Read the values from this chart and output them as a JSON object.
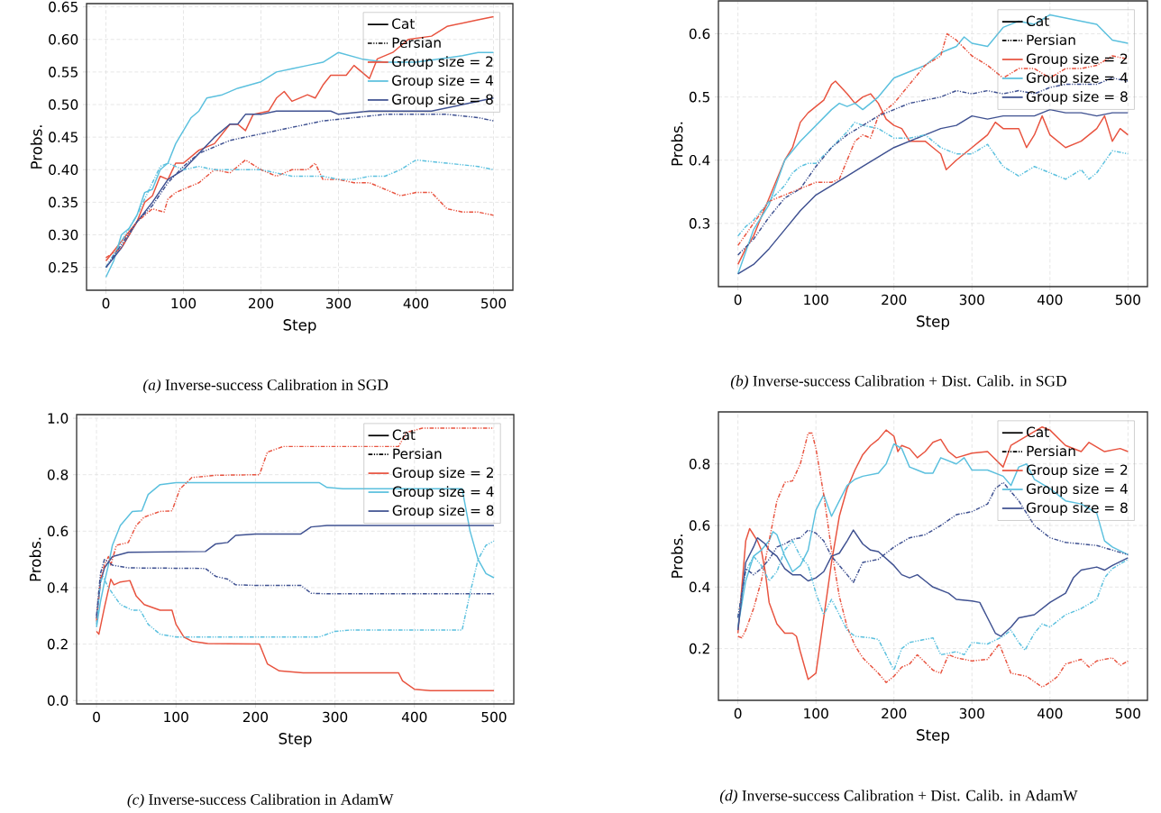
{
  "chart_data": [
    {
      "type": "line",
      "title": "*(a)* Inverse-success Calibration in SGD",
      "xlabel": "Step",
      "ylabel": "Probs.",
      "xlim": [
        -25,
        525
      ],
      "ylim": [
        0.215,
        0.655
      ],
      "xticks": [
        0,
        100,
        200,
        300,
        400,
        500
      ],
      "yticks": [
        0.25,
        {
          "value": 0.3,
          "label": "0.30"
        },
        0.35,
        {
          "value": 0.4,
          "label": "0.40"
        },
        0.45,
        {
          "value": 0.5,
          "label": "0.50"
        },
        0.55,
        {
          "value": 0.6,
          "label": "0.60"
        },
        0.65
      ],
      "grid": true,
      "legend": "top right",
      "series": [
        {
          "name": "Cat",
          "color": "#000000",
          "line_style": "solid"
        },
        {
          "name": "Persian",
          "color": "#000000",
          "line_style": "dashdotdotted"
        },
        {
          "name": "Group size = 2",
          "color": "#e8533f",
          "line_style": "solid",
          "x": [
            0,
            20,
            40,
            50,
            60,
            70,
            80,
            90,
            100,
            120,
            140,
            160,
            170,
            180,
            190,
            210,
            220,
            230,
            240,
            260,
            270,
            280,
            290,
            310,
            320,
            340,
            350,
            370,
            390,
            420,
            440,
            460,
            480,
            500
          ],
          "values": [
            0.26,
            0.29,
            0.32,
            0.35,
            0.36,
            0.39,
            0.385,
            0.41,
            0.41,
            0.43,
            0.44,
            0.47,
            0.47,
            0.46,
            0.485,
            0.49,
            0.51,
            0.52,
            0.505,
            0.515,
            0.51,
            0.53,
            0.545,
            0.545,
            0.56,
            0.54,
            0.57,
            0.58,
            0.6,
            0.605,
            0.62,
            0.625,
            0.63,
            0.635
          ]
        },
        {
          "name": "Group size = 4",
          "color": "#5bc0de",
          "line_style": "solid",
          "x": [
            0,
            10,
            20,
            30,
            40,
            50,
            60,
            70,
            80,
            90,
            100,
            110,
            120,
            130,
            150,
            170,
            200,
            220,
            240,
            260,
            280,
            300,
            330,
            360,
            400,
            430,
            460,
            480,
            500
          ],
          "values": [
            0.235,
            0.26,
            0.3,
            0.31,
            0.33,
            0.365,
            0.37,
            0.4,
            0.41,
            0.44,
            0.46,
            0.48,
            0.49,
            0.51,
            0.515,
            0.525,
            0.535,
            0.55,
            0.555,
            0.56,
            0.565,
            0.58,
            0.57,
            0.565,
            0.565,
            0.57,
            0.575,
            0.58,
            0.58
          ]
        },
        {
          "name": "Group size = 8",
          "color": "#3f5191",
          "line_style": "solid",
          "x": [
            0,
            20,
            40,
            60,
            80,
            100,
            120,
            140,
            160,
            170,
            180,
            200,
            220,
            240,
            260,
            290,
            300,
            340,
            380,
            420,
            460,
            500
          ],
          "values": [
            0.25,
            0.28,
            0.32,
            0.35,
            0.385,
            0.4,
            0.425,
            0.45,
            0.47,
            0.47,
            0.485,
            0.485,
            0.49,
            0.49,
            0.49,
            0.49,
            0.485,
            0.49,
            0.49,
            0.49,
            0.5,
            0.51
          ]
        },
        {
          "color": "#e8533f",
          "line_style": "dashdotdotted",
          "x": [
            0,
            20,
            40,
            60,
            75,
            80,
            90,
            100,
            120,
            140,
            160,
            180,
            200,
            220,
            240,
            260,
            270,
            280,
            300,
            320,
            340,
            360,
            380,
            400,
            420,
            440,
            460,
            480,
            500
          ],
          "values": [
            0.265,
            0.28,
            0.32,
            0.34,
            0.335,
            0.355,
            0.365,
            0.37,
            0.38,
            0.4,
            0.395,
            0.415,
            0.4,
            0.39,
            0.4,
            0.4,
            0.41,
            0.385,
            0.385,
            0.38,
            0.38,
            0.37,
            0.36,
            0.365,
            0.365,
            0.34,
            0.335,
            0.335,
            0.33
          ]
        },
        {
          "color": "#5bc0de",
          "line_style": "dashdotdotted",
          "x": [
            0,
            20,
            40,
            60,
            70,
            80,
            100,
            120,
            140,
            160,
            200,
            220,
            240,
            280,
            300,
            320,
            340,
            360,
            380,
            400,
            440,
            480,
            500
          ],
          "values": [
            0.25,
            0.29,
            0.33,
            0.38,
            0.405,
            0.41,
            0.4,
            0.405,
            0.4,
            0.4,
            0.4,
            0.395,
            0.39,
            0.39,
            0.385,
            0.385,
            0.39,
            0.39,
            0.4,
            0.415,
            0.41,
            0.405,
            0.4
          ]
        },
        {
          "color": "#3f5191",
          "line_style": "dashdotdotted",
          "x": [
            0,
            20,
            40,
            60,
            80,
            100,
            120,
            140,
            160,
            180,
            200,
            240,
            280,
            320,
            360,
            400,
            440,
            480,
            500
          ],
          "values": [
            0.25,
            0.285,
            0.32,
            0.345,
            0.38,
            0.405,
            0.425,
            0.435,
            0.445,
            0.45,
            0.455,
            0.465,
            0.475,
            0.48,
            0.485,
            0.485,
            0.485,
            0.48,
            0.475
          ]
        }
      ]
    },
    {
      "type": "line",
      "title": "*(b)* Inverse-success Calibration + Dist. Calib. in SGD",
      "xlabel": "Step",
      "ylabel": "Probs.",
      "xlim": [
        -25,
        525
      ],
      "ylim": [
        0.2,
        0.652
      ],
      "xticks": [
        0,
        100,
        200,
        300,
        400,
        500
      ],
      "yticks": [
        0.3,
        0.4,
        0.5,
        0.6
      ],
      "grid": true,
      "legend": "top right",
      "series": [
        {
          "name": "Cat",
          "color": "#000000",
          "line_style": "solid"
        },
        {
          "name": "Persian",
          "color": "#000000",
          "line_style": "dashdotdotted"
        },
        {
          "name": "Group size = 2",
          "color": "#e8533f",
          "line_style": "solid",
          "x": [
            0,
            10,
            20,
            30,
            40,
            50,
            60,
            70,
            80,
            90,
            100,
            110,
            120,
            125,
            140,
            150,
            160,
            170,
            180,
            190,
            200,
            210,
            220,
            240,
            250,
            260,
            267,
            280,
            290,
            300,
            310,
            320,
            330,
            340,
            360,
            370,
            380,
            390,
            400,
            420,
            440,
            460,
            470,
            480,
            490,
            500
          ],
          "values": [
            0.235,
            0.26,
            0.28,
            0.31,
            0.34,
            0.37,
            0.4,
            0.42,
            0.46,
            0.475,
            0.485,
            0.495,
            0.52,
            0.525,
            0.505,
            0.49,
            0.5,
            0.505,
            0.49,
            0.465,
            0.455,
            0.45,
            0.43,
            0.43,
            0.42,
            0.41,
            0.385,
            0.4,
            0.41,
            0.42,
            0.43,
            0.44,
            0.46,
            0.45,
            0.45,
            0.42,
            0.44,
            0.47,
            0.44,
            0.42,
            0.43,
            0.45,
            0.47,
            0.43,
            0.45,
            0.44
          ]
        },
        {
          "name": "Group size = 4",
          "color": "#5bc0de",
          "line_style": "solid",
          "x": [
            0,
            20,
            40,
            60,
            80,
            100,
            120,
            130,
            140,
            150,
            160,
            180,
            200,
            220,
            240,
            260,
            280,
            290,
            300,
            320,
            340,
            360,
            380,
            400,
            420,
            440,
            460,
            480,
            500
          ],
          "values": [
            0.22,
            0.29,
            0.33,
            0.4,
            0.43,
            0.455,
            0.48,
            0.49,
            0.485,
            0.49,
            0.48,
            0.5,
            0.53,
            0.54,
            0.55,
            0.57,
            0.58,
            0.595,
            0.585,
            0.58,
            0.61,
            0.62,
            0.615,
            0.63,
            0.625,
            0.62,
            0.615,
            0.59,
            0.585
          ]
        },
        {
          "name": "Group size = 8",
          "color": "#3f5191",
          "line_style": "solid",
          "x": [
            0,
            20,
            40,
            60,
            80,
            100,
            120,
            140,
            160,
            180,
            200,
            220,
            240,
            260,
            280,
            300,
            320,
            340,
            360,
            380,
            400,
            420,
            440,
            460,
            480,
            500
          ],
          "values": [
            0.22,
            0.235,
            0.26,
            0.29,
            0.32,
            0.345,
            0.36,
            0.375,
            0.39,
            0.405,
            0.42,
            0.43,
            0.44,
            0.45,
            0.455,
            0.47,
            0.465,
            0.47,
            0.47,
            0.47,
            0.48,
            0.475,
            0.475,
            0.47,
            0.475,
            0.475
          ]
        },
        {
          "color": "#e8533f",
          "line_style": "dashdotdotted",
          "x": [
            0,
            20,
            40,
            60,
            80,
            100,
            120,
            130,
            140,
            150,
            160,
            170,
            180,
            200,
            220,
            240,
            260,
            268,
            280,
            300,
            320,
            340,
            360,
            380,
            400,
            420,
            440,
            460,
            480,
            500
          ],
          "values": [
            0.265,
            0.3,
            0.335,
            0.345,
            0.355,
            0.365,
            0.365,
            0.37,
            0.4,
            0.43,
            0.44,
            0.435,
            0.47,
            0.49,
            0.52,
            0.55,
            0.565,
            0.6,
            0.59,
            0.565,
            0.55,
            0.53,
            0.545,
            0.545,
            0.53,
            0.545,
            0.545,
            0.55,
            0.565,
            0.56
          ]
        },
        {
          "color": "#5bc0de",
          "line_style": "dashdotdotted",
          "x": [
            0,
            10,
            20,
            40,
            60,
            70,
            80,
            90,
            100,
            120,
            140,
            150,
            160,
            180,
            200,
            220,
            240,
            260,
            280,
            300,
            320,
            340,
            360,
            380,
            400,
            420,
            440,
            450,
            460,
            480,
            500
          ],
          "values": [
            0.28,
            0.295,
            0.305,
            0.335,
            0.36,
            0.38,
            0.39,
            0.395,
            0.395,
            0.42,
            0.445,
            0.46,
            0.455,
            0.45,
            0.435,
            0.435,
            0.44,
            0.42,
            0.41,
            0.41,
            0.425,
            0.39,
            0.375,
            0.39,
            0.38,
            0.37,
            0.385,
            0.37,
            0.38,
            0.415,
            0.41
          ]
        },
        {
          "color": "#3f5191",
          "line_style": "dashdotdotted",
          "x": [
            0,
            20,
            40,
            60,
            80,
            100,
            120,
            140,
            160,
            180,
            200,
            220,
            240,
            260,
            280,
            300,
            320,
            340,
            360,
            380,
            400,
            420,
            440,
            460,
            480,
            500
          ],
          "values": [
            0.25,
            0.275,
            0.31,
            0.34,
            0.355,
            0.39,
            0.42,
            0.44,
            0.455,
            0.47,
            0.48,
            0.49,
            0.495,
            0.5,
            0.51,
            0.505,
            0.51,
            0.505,
            0.51,
            0.505,
            0.515,
            0.52,
            0.52,
            0.52,
            0.53,
            0.525
          ]
        }
      ]
    },
    {
      "type": "line",
      "title": "*(c)* Inverse-success Calibration in AdamW",
      "xlabel": "Step",
      "ylabel": "Probs.",
      "xlim": [
        -25,
        525
      ],
      "ylim": [
        -0.012,
        1.013
      ],
      "xticks": [
        0,
        100,
        200,
        300,
        400,
        500
      ],
      "yticks": [
        {
          "value": 0,
          "label": "0.0"
        },
        0.2,
        0.4,
        0.6,
        0.8,
        {
          "value": 1,
          "label": "1.0"
        }
      ],
      "grid": true,
      "legend": "top right",
      "series": [
        {
          "name": "Cat",
          "color": "#000000",
          "line_style": "solid"
        },
        {
          "name": "Persian",
          "color": "#000000",
          "line_style": "dashdotdotted"
        },
        {
          "name": "Group size = 2",
          "color": "#e8533f",
          "line_style": "solid",
          "x": [
            0,
            3,
            10,
            18,
            22,
            30,
            42,
            50,
            60,
            80,
            95,
            100,
            110,
            120,
            140,
            205,
            215,
            230,
            260,
            380,
            385,
            400,
            420,
            500
          ],
          "values": [
            0.245,
            0.235,
            0.33,
            0.43,
            0.41,
            0.42,
            0.425,
            0.37,
            0.34,
            0.32,
            0.32,
            0.27,
            0.225,
            0.21,
            0.202,
            0.2,
            0.13,
            0.105,
            0.098,
            0.098,
            0.07,
            0.04,
            0.035,
            0.035
          ]
        },
        {
          "name": "Group size = 4",
          "color": "#5bc0de",
          "line_style": "solid",
          "x": [
            0,
            5,
            10,
            15,
            20,
            30,
            45,
            57,
            65,
            80,
            100,
            280,
            290,
            310,
            460,
            470,
            480,
            490,
            500
          ],
          "values": [
            0.26,
            0.35,
            0.42,
            0.48,
            0.55,
            0.62,
            0.67,
            0.672,
            0.73,
            0.765,
            0.772,
            0.772,
            0.755,
            0.75,
            0.75,
            0.6,
            0.5,
            0.45,
            0.435
          ]
        },
        {
          "name": "Group size = 8",
          "color": "#3f5191",
          "line_style": "solid",
          "x": [
            0,
            5,
            10,
            20,
            40,
            137,
            150,
            165,
            175,
            200,
            257,
            270,
            290,
            500
          ],
          "values": [
            0.29,
            0.42,
            0.47,
            0.51,
            0.525,
            0.528,
            0.555,
            0.56,
            0.585,
            0.59,
            0.59,
            0.615,
            0.62,
            0.62
          ]
        },
        {
          "color": "#e8533f",
          "line_style": "dashdotdotted",
          "x": [
            0,
            5,
            10,
            15,
            18,
            25,
            40,
            50,
            60,
            80,
            95,
            105,
            120,
            150,
            205,
            215,
            235,
            380,
            390,
            410,
            500
          ],
          "values": [
            0.28,
            0.43,
            0.48,
            0.51,
            0.48,
            0.55,
            0.56,
            0.62,
            0.65,
            0.67,
            0.672,
            0.75,
            0.79,
            0.798,
            0.8,
            0.88,
            0.9,
            0.9,
            0.95,
            0.965,
            0.965
          ]
        },
        {
          "color": "#5bc0de",
          "line_style": "dashdotdotted",
          "x": [
            0,
            5,
            8,
            15,
            30,
            45,
            55,
            65,
            80,
            100,
            280,
            300,
            320,
            460,
            470,
            480,
            490,
            500
          ],
          "values": [
            0.27,
            0.42,
            0.44,
            0.4,
            0.34,
            0.32,
            0.32,
            0.27,
            0.235,
            0.225,
            0.225,
            0.245,
            0.25,
            0.25,
            0.38,
            0.5,
            0.55,
            0.565
          ]
        },
        {
          "color": "#3f5191",
          "line_style": "dashdotdotted",
          "x": [
            0,
            5,
            10,
            20,
            40,
            137,
            150,
            165,
            175,
            200,
            257,
            270,
            290,
            500
          ],
          "values": [
            0.3,
            0.45,
            0.5,
            0.48,
            0.47,
            0.468,
            0.44,
            0.43,
            0.41,
            0.408,
            0.408,
            0.38,
            0.378,
            0.378
          ]
        }
      ]
    },
    {
      "type": "line",
      "title": "*(d)* Inverse-success Calibration + Dist. Calib. in AdamW",
      "xlabel": "Step",
      "ylabel": "Probs.",
      "xlim": [
        -25,
        525
      ],
      "ylim": [
        0.032,
        0.969
      ],
      "xticks": [
        0,
        100,
        200,
        300,
        400,
        500
      ],
      "yticks": [
        0.2,
        0.4,
        0.6,
        0.8
      ],
      "grid": true,
      "legend": "top right",
      "series": [
        {
          "name": "Cat",
          "color": "#000000",
          "line_style": "solid"
        },
        {
          "name": "Persian",
          "color": "#000000",
          "line_style": "dashdotdotted"
        },
        {
          "name": "Group size = 2",
          "color": "#e8533f",
          "line_style": "solid",
          "x": [
            0,
            5,
            10,
            15,
            20,
            25,
            30,
            35,
            40,
            50,
            60,
            70,
            75,
            80,
            90,
            100,
            110,
            120,
            130,
            140,
            150,
            160,
            170,
            180,
            190,
            200,
            205,
            210,
            220,
            230,
            240,
            250,
            260,
            270,
            280,
            300,
            320,
            340,
            350,
            370,
            390,
            400,
            420,
            440,
            450,
            470,
            490,
            500
          ],
          "values": [
            0.25,
            0.4,
            0.55,
            0.59,
            0.57,
            0.55,
            0.52,
            0.45,
            0.35,
            0.28,
            0.25,
            0.25,
            0.24,
            0.19,
            0.1,
            0.12,
            0.3,
            0.48,
            0.63,
            0.72,
            0.78,
            0.83,
            0.86,
            0.88,
            0.91,
            0.89,
            0.84,
            0.86,
            0.85,
            0.82,
            0.84,
            0.87,
            0.88,
            0.84,
            0.82,
            0.835,
            0.84,
            0.79,
            0.86,
            0.89,
            0.92,
            0.91,
            0.86,
            0.84,
            0.87,
            0.84,
            0.85,
            0.84
          ]
        },
        {
          "name": "Group size = 4",
          "color": "#5bc0de",
          "line_style": "solid",
          "x": [
            0,
            10,
            20,
            30,
            40,
            45,
            50,
            60,
            70,
            80,
            90,
            100,
            110,
            120,
            130,
            140,
            150,
            160,
            180,
            190,
            200,
            210,
            220,
            240,
            250,
            260,
            280,
            290,
            300,
            320,
            340,
            350,
            360,
            370,
            380,
            400,
            420,
            440,
            460,
            470,
            480,
            500
          ],
          "values": [
            0.27,
            0.42,
            0.5,
            0.52,
            0.55,
            0.58,
            0.57,
            0.5,
            0.45,
            0.47,
            0.52,
            0.65,
            0.7,
            0.63,
            0.68,
            0.73,
            0.75,
            0.76,
            0.77,
            0.8,
            0.865,
            0.85,
            0.79,
            0.77,
            0.77,
            0.82,
            0.8,
            0.82,
            0.78,
            0.78,
            0.76,
            0.73,
            0.79,
            0.8,
            0.75,
            0.72,
            0.68,
            0.67,
            0.64,
            0.55,
            0.53,
            0.505
          ]
        },
        {
          "name": "Group size = 8",
          "color": "#3f5191",
          "line_style": "solid",
          "x": [
            0,
            10,
            20,
            25,
            35,
            40,
            50,
            60,
            70,
            80,
            90,
            100,
            110,
            120,
            130,
            140,
            148,
            160,
            170,
            180,
            200,
            210,
            220,
            230,
            240,
            250,
            270,
            280,
            300,
            310,
            320,
            330,
            337,
            350,
            360,
            380,
            400,
            420,
            430,
            440,
            460,
            470,
            480,
            500
          ],
          "values": [
            0.26,
            0.48,
            0.53,
            0.56,
            0.54,
            0.52,
            0.5,
            0.46,
            0.44,
            0.44,
            0.42,
            0.43,
            0.45,
            0.5,
            0.51,
            0.55,
            0.585,
            0.54,
            0.52,
            0.515,
            0.47,
            0.44,
            0.43,
            0.44,
            0.42,
            0.4,
            0.38,
            0.36,
            0.355,
            0.35,
            0.3,
            0.25,
            0.24,
            0.27,
            0.3,
            0.31,
            0.35,
            0.38,
            0.43,
            0.455,
            0.465,
            0.455,
            0.47,
            0.495
          ]
        },
        {
          "color": "#e8533f",
          "line_style": "dashdotdotted",
          "x": [
            0,
            5,
            10,
            20,
            30,
            40,
            50,
            60,
            70,
            80,
            90,
            95,
            100,
            110,
            120,
            130,
            140,
            150,
            160,
            180,
            190,
            200,
            210,
            220,
            230,
            250,
            260,
            270,
            280,
            300,
            320,
            335,
            350,
            370,
            390,
            400,
            410,
            420,
            440,
            450,
            460,
            480,
            490,
            500
          ],
          "values": [
            0.24,
            0.235,
            0.26,
            0.33,
            0.42,
            0.55,
            0.68,
            0.74,
            0.745,
            0.8,
            0.9,
            0.9,
            0.85,
            0.7,
            0.52,
            0.37,
            0.27,
            0.21,
            0.17,
            0.12,
            0.09,
            0.11,
            0.14,
            0.15,
            0.18,
            0.13,
            0.12,
            0.18,
            0.17,
            0.16,
            0.165,
            0.215,
            0.12,
            0.11,
            0.075,
            0.09,
            0.11,
            0.15,
            0.165,
            0.14,
            0.16,
            0.17,
            0.145,
            0.16
          ]
        },
        {
          "color": "#5bc0de",
          "line_style": "dashdotdotted",
          "x": [
            0,
            10,
            20,
            30,
            40,
            50,
            60,
            70,
            80,
            90,
            100,
            110,
            120,
            130,
            140,
            150,
            170,
            180,
            190,
            200,
            210,
            220,
            240,
            250,
            260,
            280,
            290,
            300,
            320,
            340,
            350,
            360,
            368,
            380,
            390,
            400,
            420,
            440,
            460,
            470,
            480,
            500
          ],
          "values": [
            0.3,
            0.45,
            0.5,
            0.47,
            0.42,
            0.45,
            0.52,
            0.55,
            0.5,
            0.47,
            0.38,
            0.31,
            0.36,
            0.31,
            0.26,
            0.24,
            0.235,
            0.23,
            0.18,
            0.13,
            0.2,
            0.22,
            0.23,
            0.235,
            0.18,
            0.19,
            0.18,
            0.22,
            0.215,
            0.24,
            0.26,
            0.22,
            0.195,
            0.25,
            0.28,
            0.27,
            0.31,
            0.33,
            0.36,
            0.43,
            0.46,
            0.49
          ]
        },
        {
          "color": "#3f5191",
          "line_style": "dashdotdotted",
          "x": [
            0,
            10,
            20,
            30,
            40,
            50,
            60,
            70,
            80,
            90,
            100,
            110,
            120,
            130,
            140,
            148,
            160,
            180,
            200,
            220,
            240,
            260,
            280,
            300,
            320,
            330,
            340,
            360,
            380,
            390,
            400,
            420,
            440,
            460,
            480,
            500
          ],
          "values": [
            0.3,
            0.46,
            0.44,
            0.46,
            0.49,
            0.53,
            0.54,
            0.555,
            0.56,
            0.585,
            0.575,
            0.55,
            0.5,
            0.47,
            0.44,
            0.415,
            0.48,
            0.49,
            0.53,
            0.56,
            0.57,
            0.6,
            0.635,
            0.645,
            0.67,
            0.72,
            0.74,
            0.68,
            0.6,
            0.58,
            0.56,
            0.545,
            0.54,
            0.535,
            0.52,
            0.505
          ]
        }
      ]
    }
  ]
}
